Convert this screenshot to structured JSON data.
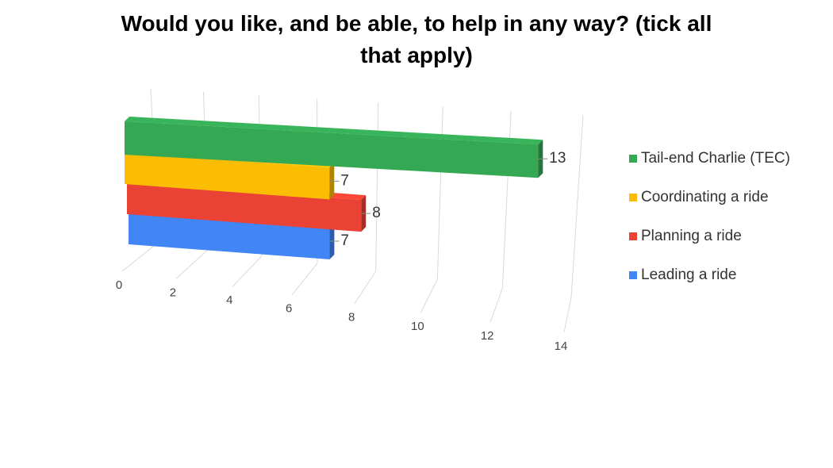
{
  "chart_data": {
    "type": "bar",
    "title": "Would you like, and be able, to help in any way? (tick all that apply)",
    "categories": [
      null
    ],
    "series": [
      {
        "name": "Tail-end Charlie (TEC)",
        "color": "#34a853",
        "values": [
          13
        ]
      },
      {
        "name": "Coordinating a ride",
        "color": "#fbbc04",
        "values": [
          7
        ]
      },
      {
        "name": "Planning a ride",
        "color": "#ea4335",
        "values": [
          8
        ]
      },
      {
        "name": "Leading a ride",
        "color": "#4285f4",
        "values": [
          7
        ]
      }
    ],
    "xlim": [
      0,
      14
    ],
    "xticks": [
      0,
      2,
      4,
      6,
      8,
      10,
      12,
      14
    ],
    "grid": true,
    "legend": "right"
  }
}
